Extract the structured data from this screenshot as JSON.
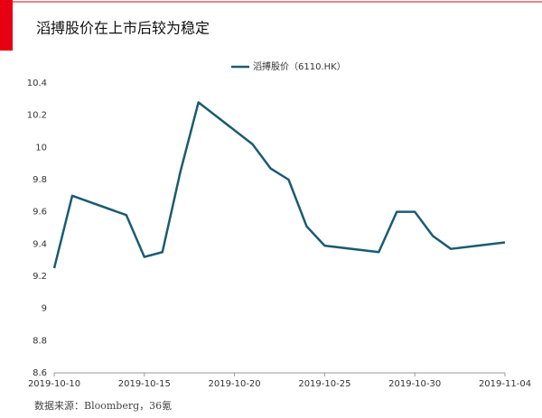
{
  "chart_data": {
    "type": "line",
    "title": "滔搏股价在上市后较为稳定",
    "x": [
      "2019-10-10",
      "2019-10-11",
      "2019-10-14",
      "2019-10-15",
      "2019-10-16",
      "2019-10-17",
      "2019-10-18",
      "2019-10-21",
      "2019-10-22",
      "2019-10-23",
      "2019-10-24",
      "2019-10-25",
      "2019-10-28",
      "2019-10-29",
      "2019-10-30",
      "2019-10-31",
      "2019-11-01",
      "2019-11-04"
    ],
    "series": [
      {
        "name": "滔搏股价（6110.HK）",
        "color": "#1b5b72",
        "values": [
          9.25,
          9.7,
          9.58,
          9.32,
          9.35,
          9.85,
          10.28,
          10.02,
          9.87,
          9.8,
          9.51,
          9.39,
          9.35,
          9.6,
          9.6,
          9.45,
          9.37,
          9.41
        ]
      }
    ],
    "xlim": [
      "2019-10-10",
      "2019-11-04"
    ],
    "xticks": [
      "2019-10-10",
      "2019-10-15",
      "2019-10-20",
      "2019-10-25",
      "2019-10-30",
      "2019-11-04"
    ],
    "ylim": [
      8.6,
      10.4
    ],
    "yticks": [
      8.6,
      8.8,
      9,
      9.2,
      9.4,
      9.6,
      9.8,
      10,
      10.2,
      10.4
    ],
    "source": "数据来源：Bloomberg，36氪"
  }
}
